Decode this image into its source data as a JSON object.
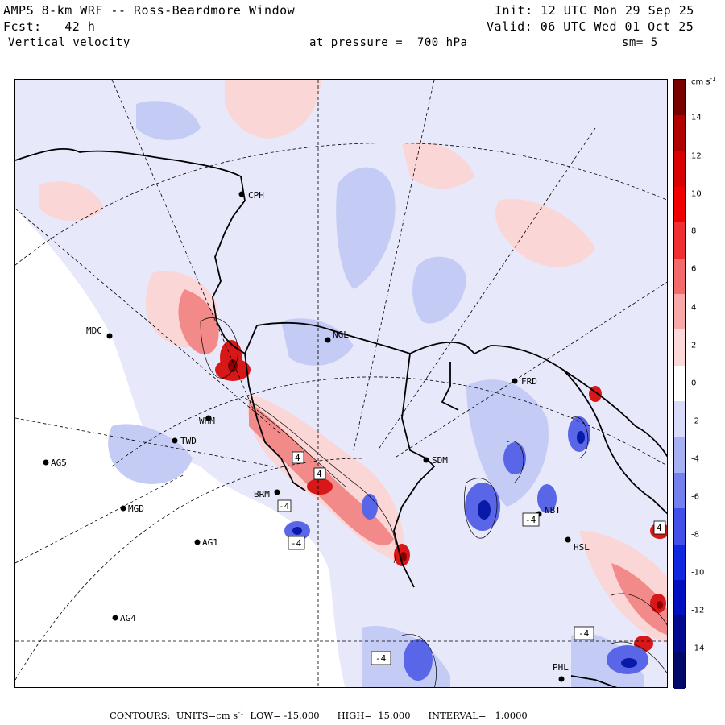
{
  "header": {
    "title": "AMPS 8-km WRF -- Ross-Beardmore Window",
    "init": "Init: 12 UTC Mon 29 Sep 25",
    "fcst": "Fcst:   42 h",
    "valid": "Valid: 06 UTC Wed 01 Oct 25",
    "field": "Vertical velocity",
    "pressure": "at pressure =  700 hPa",
    "smoothing": "sm= 5"
  },
  "colorbar": {
    "units_base": "cm s",
    "units_exp": "-1",
    "labels": [
      "14",
      "12",
      "10",
      "8",
      "6",
      "4",
      "2",
      "0",
      "-2",
      "-4",
      "-6",
      "-8",
      "-10",
      "-12",
      "-14"
    ],
    "colors": [
      {
        "stop": "#7a0000"
      },
      {
        "stop": "#b00000"
      },
      {
        "stop": "#d80000"
      },
      {
        "stop": "#f00000"
      },
      {
        "stop": "#f03030"
      },
      {
        "stop": "#f46a6a"
      },
      {
        "stop": "#f8a8a8"
      },
      {
        "stop": "#fcd8d8"
      },
      {
        "stop": "#ffffff"
      },
      {
        "stop": "#d8dcfa"
      },
      {
        "stop": "#a8b0f4"
      },
      {
        "stop": "#7480ee"
      },
      {
        "stop": "#4050e8"
      },
      {
        "stop": "#1028e0"
      },
      {
        "stop": "#0010c0"
      },
      {
        "stop": "#000a90"
      },
      {
        "stop": "#00086a"
      }
    ]
  },
  "stations": [
    {
      "name": "CPH"
    },
    {
      "name": "MDC"
    },
    {
      "name": "NGL"
    },
    {
      "name": "FRD"
    },
    {
      "name": "AG5"
    },
    {
      "name": "MGD"
    },
    {
      "name": "AG1"
    },
    {
      "name": "AG4"
    },
    {
      "name": "WHM"
    },
    {
      "name": "TWD"
    },
    {
      "name": "SDM"
    },
    {
      "name": "BRM"
    },
    {
      "name": "NBT"
    },
    {
      "name": "HSL"
    },
    {
      "name": "PHL"
    }
  ],
  "contour_labels": [
    "4",
    "-4",
    "-4",
    "4",
    "-4",
    "4",
    "-4",
    "-4"
  ],
  "footer": {
    "contours": "CONTOURS:",
    "units": "UNITS=cm s",
    "units_exp": "-1",
    "low": "LOW= -15.000",
    "high": "HIGH=  15.000",
    "interval": "INTERVAL=   1.0000"
  }
}
